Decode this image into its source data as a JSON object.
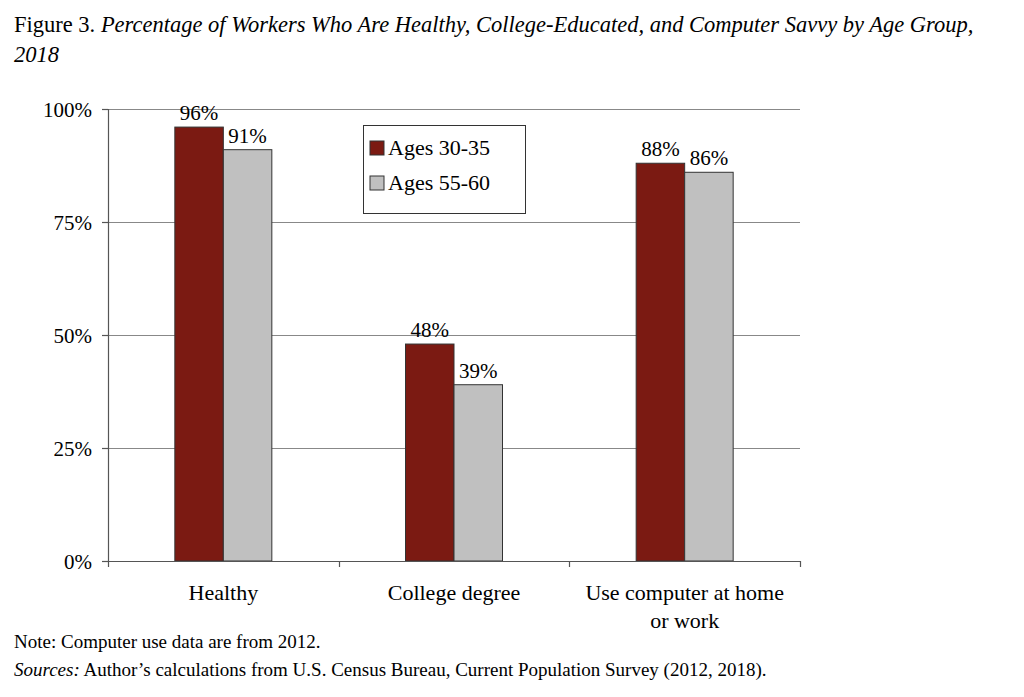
{
  "chart_data": {
    "type": "bar",
    "title": "Figure 3. Percentage of Workers Who Are Healthy, College-Educated, and Computer Savvy by Age Group, 2018",
    "categories": [
      "Healthy",
      "College degree",
      "Use computer at home or work"
    ],
    "series": [
      {
        "name": "Ages 30-35",
        "color": "#7b1a12",
        "values": [
          96,
          48,
          88
        ],
        "value_labels": [
          "96%",
          "48%",
          "88%"
        ]
      },
      {
        "name": "Ages 55-60",
        "color": "#c0c0c0",
        "values": [
          91,
          39,
          86
        ],
        "value_labels": [
          "91%",
          "39%",
          "86%"
        ]
      }
    ],
    "ylim": [
      0,
      100
    ],
    "yticks": [
      {
        "value": 0,
        "label": "0%"
      },
      {
        "value": 25,
        "label": "25%"
      },
      {
        "value": 50,
        "label": "50%"
      },
      {
        "value": 75,
        "label": "75%"
      },
      {
        "value": 100,
        "label": "100%"
      }
    ],
    "grid": true,
    "legend": "top",
    "data_labels": true,
    "note": "Note: Computer use data are from 2012.",
    "source": "Sources: Author’s calculations from U.S. Census Bureau, Current Population Survey (2012, 2018)."
  }
}
